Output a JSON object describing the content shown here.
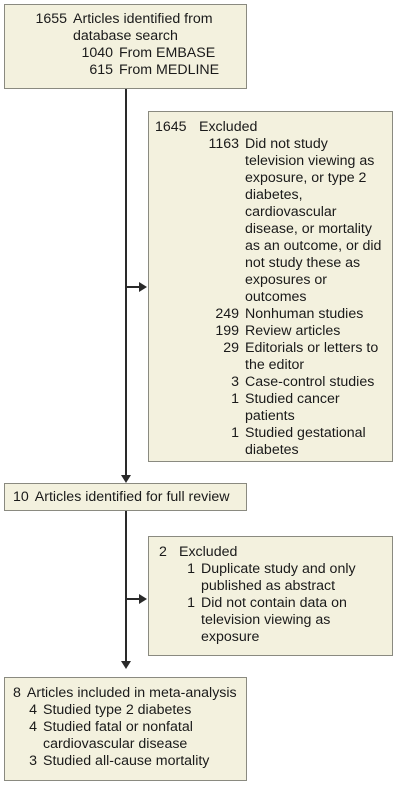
{
  "box1": {
    "count": "1655",
    "text": "Articles identified from database search",
    "subs": [
      {
        "count": "1040",
        "text": "From EMBASE"
      },
      {
        "count": "615",
        "text": "From MEDLINE"
      }
    ]
  },
  "excluded1": {
    "count": "1645",
    "text": "Excluded",
    "items": [
      {
        "count": "1163",
        "text": "Did not study television viewing as exposure, or type 2 diabetes, cardiovascular disease, or mortality as an outcome, or did not study these as exposures or outcomes"
      },
      {
        "count": "249",
        "text": "Nonhuman studies"
      },
      {
        "count": "199",
        "text": "Review articles"
      },
      {
        "count": "29",
        "text": "Editorials or letters to the editor"
      },
      {
        "count": "3",
        "text": "Case-control studies"
      },
      {
        "count": "1",
        "text": "Studied cancer patients"
      },
      {
        "count": "1",
        "text": "Studied gestational diabetes"
      }
    ]
  },
  "box2": {
    "count": "10",
    "text": "Articles identified for full review"
  },
  "excluded2": {
    "count": "2",
    "text": "Excluded",
    "items": [
      {
        "count": "1",
        "text": "Duplicate study and only published as abstract"
      },
      {
        "count": "1",
        "text": "Did not contain data on television viewing as exposure"
      }
    ]
  },
  "box3": {
    "count": "8",
    "text": "Articles included in meta-analysis",
    "items": [
      {
        "count": "4",
        "text": "Studied type 2 diabetes"
      },
      {
        "count": "4",
        "text": "Studied fatal or nonfatal cardiovascular disease"
      },
      {
        "count": "3",
        "text": "Studied all-cause mortality"
      }
    ]
  }
}
